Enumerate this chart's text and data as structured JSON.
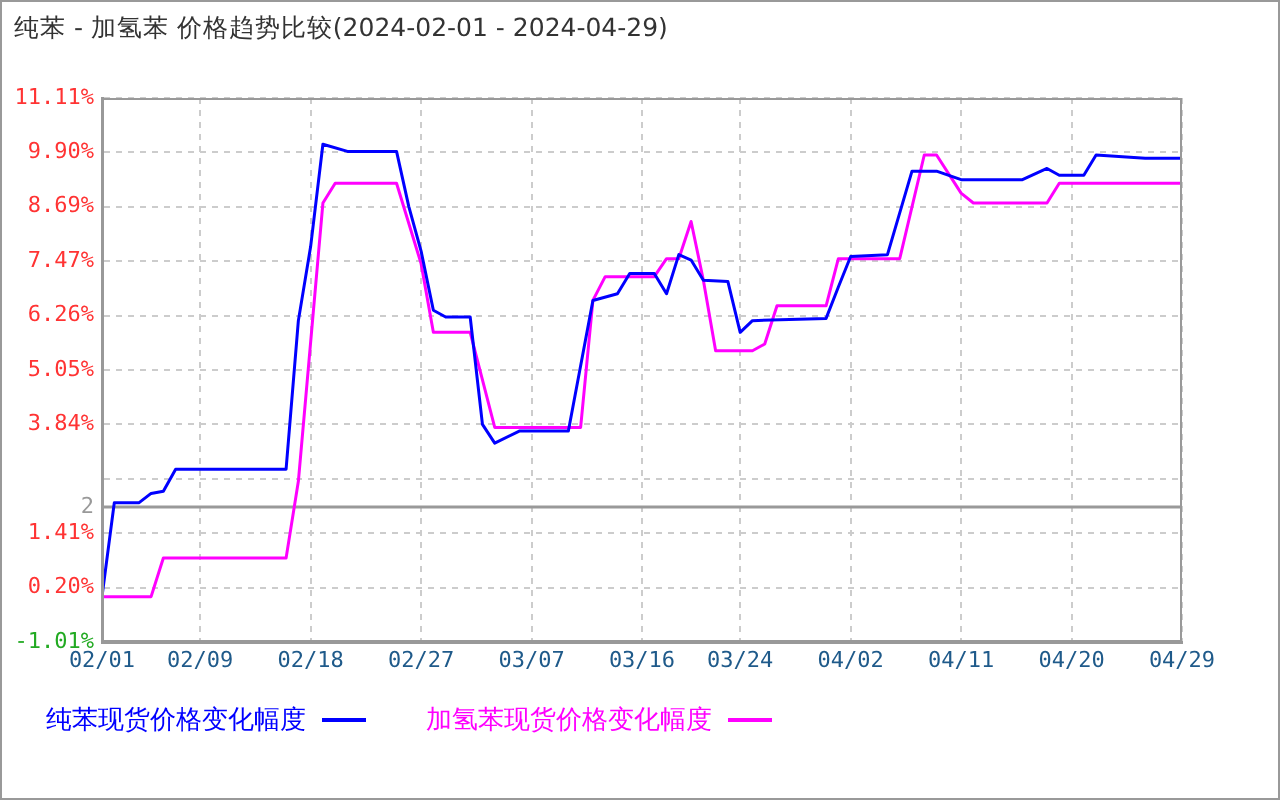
{
  "chart_data": {
    "type": "line",
    "title": "纯苯 - 加氢苯 价格趋势比较(2024-02-01 - 2024-04-29)",
    "xlim": [
      "2024-02-01",
      "2024-04-29"
    ],
    "xticks": [
      {
        "value": "2024-02-01",
        "label": "02/01"
      },
      {
        "value": "2024-02-09",
        "label": "02/09"
      },
      {
        "value": "2024-02-18",
        "label": "02/18"
      },
      {
        "value": "2024-02-27",
        "label": "02/27"
      },
      {
        "value": "2024-03-07",
        "label": "03/07"
      },
      {
        "value": "2024-03-16",
        "label": "03/16"
      },
      {
        "value": "2024-03-24",
        "label": "03/24"
      },
      {
        "value": "2024-04-02",
        "label": "04/02"
      },
      {
        "value": "2024-04-11",
        "label": "04/11"
      },
      {
        "value": "2024-04-20",
        "label": "04/20"
      },
      {
        "value": "2024-04-29",
        "label": "04/29"
      }
    ],
    "ylim": [
      -1.01,
      11.11
    ],
    "yticks": [
      {
        "value": -1.01,
        "label": "-1.01%"
      },
      {
        "value": 0.2,
        "label": "0.20%"
      },
      {
        "value": 1.41,
        "label": "1.41%"
      },
      {
        "value": 2,
        "label": "2"
      },
      {
        "value": 2.63,
        "label": null
      },
      {
        "value": 3.84,
        "label": "3.84%"
      },
      {
        "value": 5.05,
        "label": "5.05%"
      },
      {
        "value": 6.26,
        "label": "6.26%"
      },
      {
        "value": 7.47,
        "label": "7.47%"
      },
      {
        "value": 8.69,
        "label": "8.69%"
      },
      {
        "value": 9.9,
        "label": "9.90%"
      },
      {
        "value": 11.11,
        "label": "11.11%"
      }
    ],
    "ref_lines": [
      {
        "axis": "y",
        "value": 2,
        "color": "#999999"
      }
    ],
    "grid": true,
    "legend": "bottom",
    "line_style": "solid",
    "series": [
      {
        "name": "纯苯现货价格变化幅度",
        "color": "#0000ff",
        "x": [
          "2024-02-01",
          "2024-02-02",
          "2024-02-04",
          "2024-02-05",
          "2024-02-06",
          "2024-02-07",
          "2024-02-16",
          "2024-02-17",
          "2024-02-18",
          "2024-02-19",
          "2024-02-21",
          "2024-02-25",
          "2024-02-26",
          "2024-02-27",
          "2024-02-28",
          "2024-02-29",
          "2024-03-02",
          "2024-03-03",
          "2024-03-04",
          "2024-03-06",
          "2024-03-10",
          "2024-03-12",
          "2024-03-14",
          "2024-03-15",
          "2024-03-17",
          "2024-03-18",
          "2024-03-19",
          "2024-03-20",
          "2024-03-21",
          "2024-03-23",
          "2024-03-24",
          "2024-03-25",
          "2024-03-31",
          "2024-04-01",
          "2024-04-02",
          "2024-04-05",
          "2024-04-07",
          "2024-04-09",
          "2024-04-11",
          "2024-04-16",
          "2024-04-18",
          "2024-04-19",
          "2024-04-21",
          "2024-04-22",
          "2024-04-26",
          "2024-04-27",
          "2024-04-29"
        ],
        "values": [
          0.0,
          2.09,
          2.09,
          2.3,
          2.35,
          2.84,
          2.84,
          6.15,
          7.8,
          10.08,
          9.92,
          9.92,
          8.69,
          7.7,
          6.38,
          6.23,
          6.23,
          3.84,
          3.42,
          3.69,
          3.69,
          6.6,
          6.75,
          7.2,
          7.2,
          6.75,
          7.62,
          7.5,
          7.05,
          7.02,
          5.89,
          6.15,
          6.2,
          6.9,
          7.58,
          7.62,
          9.48,
          9.48,
          9.29,
          9.29,
          9.54,
          9.39,
          9.39,
          9.84,
          9.77,
          9.77,
          9.77
        ]
      },
      {
        "name": "加氢苯现货价格变化幅度",
        "color": "#ff00ff",
        "x": [
          "2024-02-01",
          "2024-02-05",
          "2024-02-06",
          "2024-02-16",
          "2024-02-17",
          "2024-02-19",
          "2024-02-20",
          "2024-02-25",
          "2024-02-27",
          "2024-02-28",
          "2024-03-02",
          "2024-03-04",
          "2024-03-11",
          "2024-03-12",
          "2024-03-13",
          "2024-03-17",
          "2024-03-18",
          "2024-03-19",
          "2024-03-20",
          "2024-03-21",
          "2024-03-22",
          "2024-03-25",
          "2024-03-26",
          "2024-03-27",
          "2024-03-31",
          "2024-04-01",
          "2024-04-06",
          "2024-04-08",
          "2024-04-09",
          "2024-04-11",
          "2024-04-12",
          "2024-04-18",
          "2024-04-19",
          "2024-04-29"
        ],
        "values": [
          0.0,
          0.0,
          0.86,
          0.86,
          2.57,
          8.77,
          9.21,
          9.21,
          7.42,
          5.89,
          5.89,
          3.77,
          3.77,
          6.6,
          7.13,
          7.13,
          7.53,
          7.53,
          8.36,
          7.05,
          5.48,
          5.48,
          5.63,
          6.48,
          6.48,
          7.53,
          7.53,
          9.84,
          9.84,
          8.99,
          8.77,
          8.77,
          9.21,
          9.21
        ]
      }
    ]
  }
}
